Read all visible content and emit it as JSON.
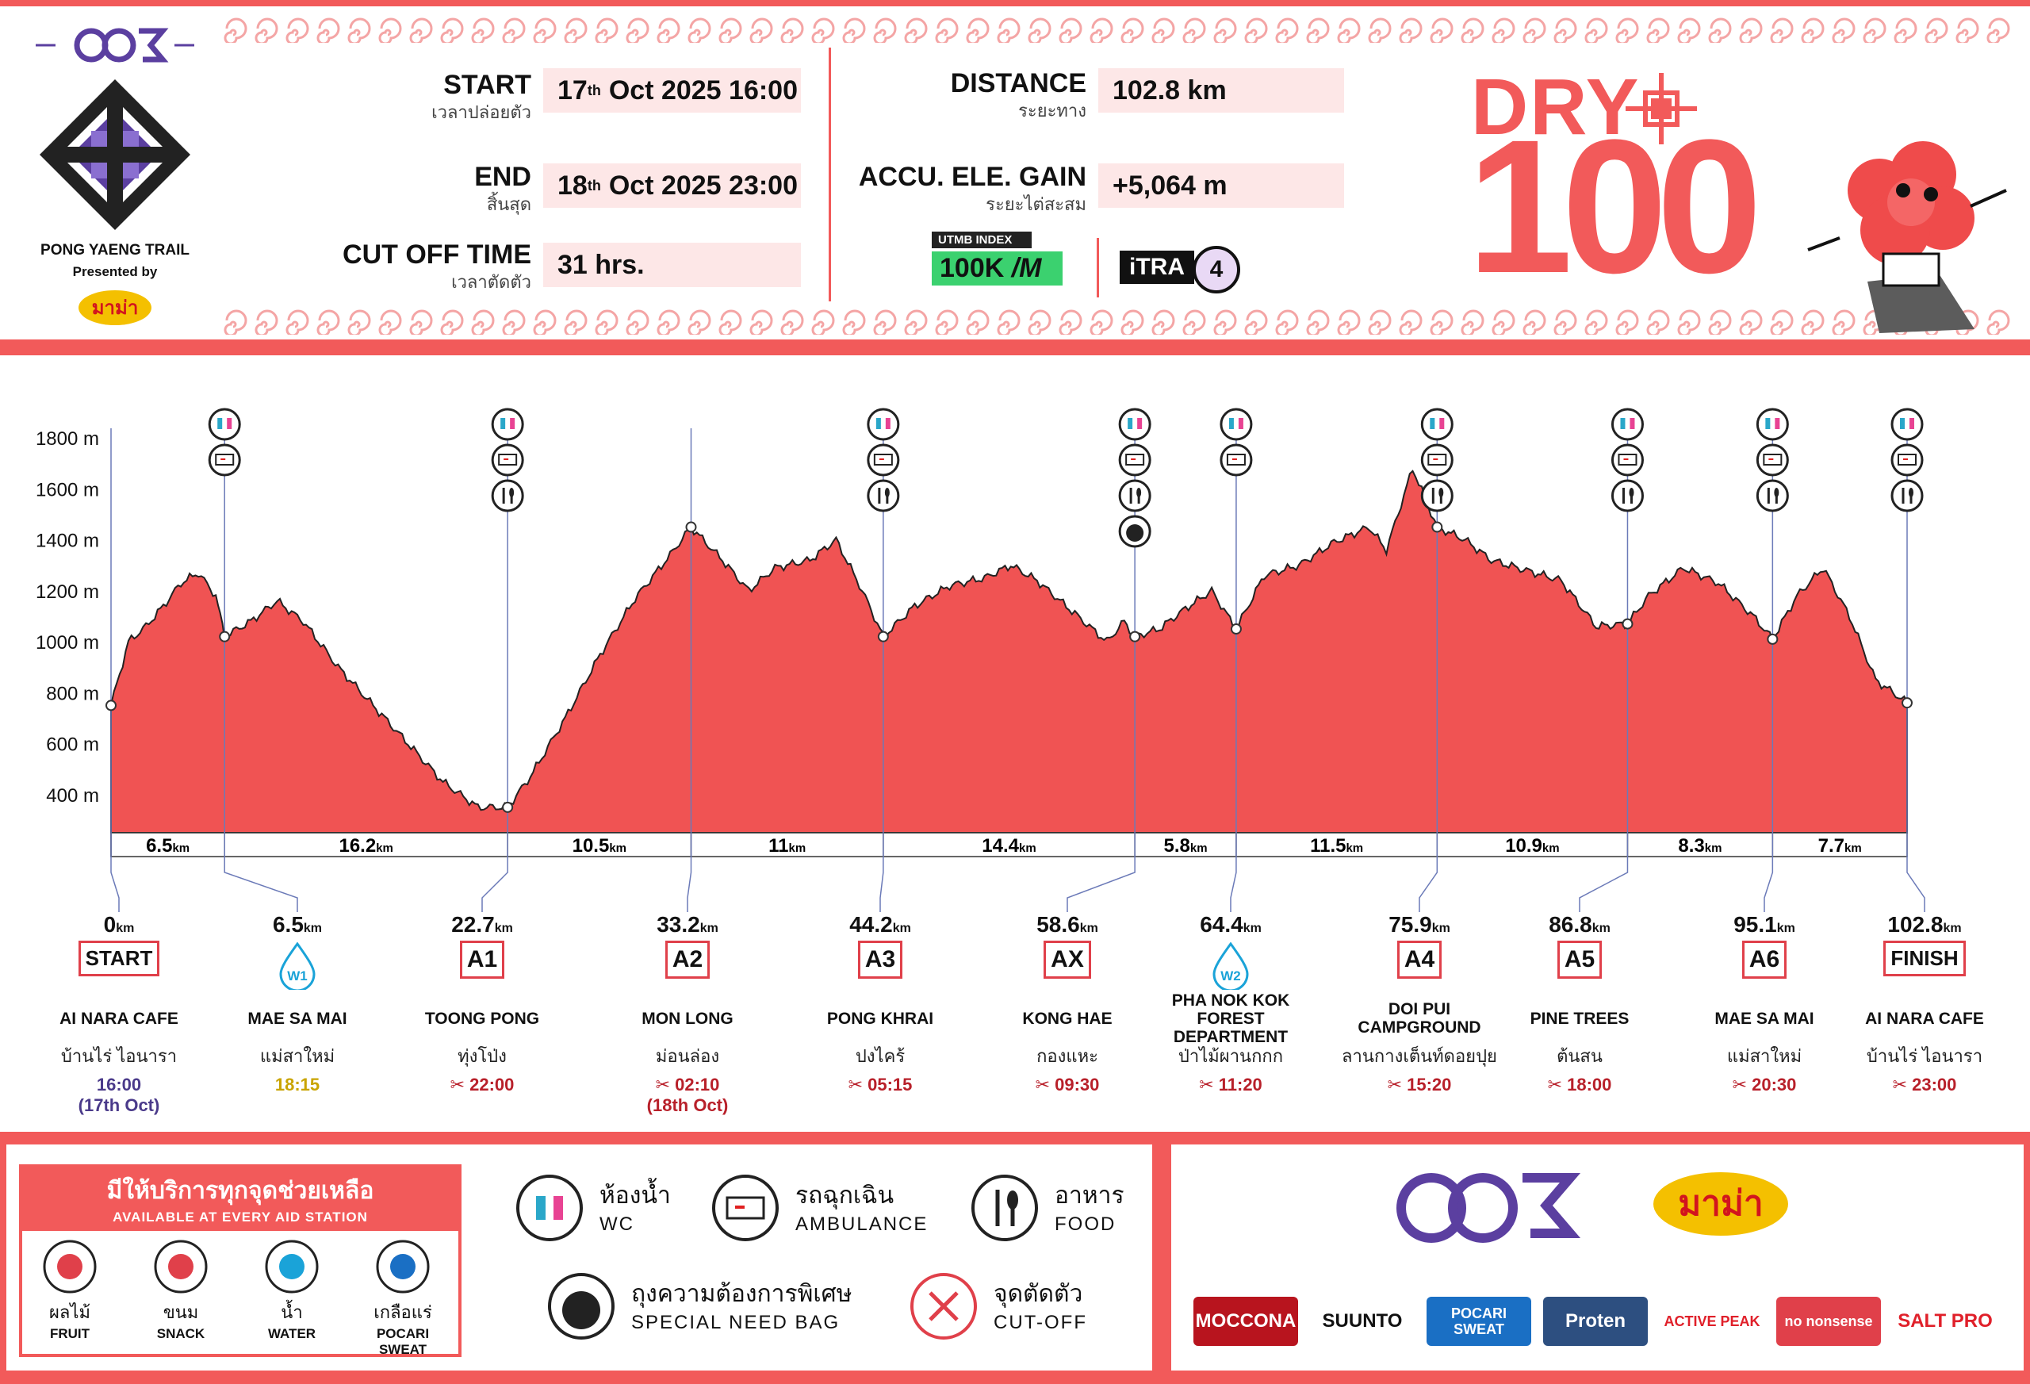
{
  "header": {
    "logo_text": "PONG YAENG TRAIL",
    "presented_by": "Presented by",
    "start_label": "START",
    "start_th": "เวลาปล่อยตัว",
    "start_day": "17",
    "start_sup": "th",
    "start_rest": "Oct  2025  16:00",
    "end_label": "END",
    "end_th": "สิ้นสุด",
    "end_day": "18",
    "end_sup": "th",
    "end_rest": "Oct  2025  23:00",
    "cutoff_label": "CUT OFF TIME",
    "cutoff_th": "เวลาตัดตัว",
    "cutoff_value": "31 hrs.",
    "distance_label": "DISTANCE",
    "distance_th": "ระยะทาง",
    "distance_value": "102.8 km",
    "gain_label": "ACCU. ELE. GAIN",
    "gain_th": "ระยะไต่สะสม",
    "gain_value": "+5,064 m",
    "utmb_top": "UTMB INDEX",
    "utmb_value": "100K",
    "itra_label": "iTRA",
    "itra_value": "4",
    "race_name_1": "DRY",
    "race_name_2": "100"
  },
  "chart_data": {
    "type": "area",
    "title": "",
    "xlabel": "",
    "ylabel": "",
    "ylim": [
      250,
      1900
    ],
    "xlim": [
      0,
      102.8
    ],
    "y_ticks": [
      "1800 m",
      "1600 m",
      "1400 m",
      "1200 m",
      "1000 m",
      "800 m",
      "600 m",
      "400 m"
    ],
    "y_tick_values": [
      1800,
      1600,
      1400,
      1200,
      1000,
      800,
      600,
      400
    ],
    "profile": [
      [
        0,
        750
      ],
      [
        1,
        1000
      ],
      [
        2,
        1060
      ],
      [
        3,
        1140
      ],
      [
        4,
        1230
      ],
      [
        5,
        1270
      ],
      [
        6,
        1180
      ],
      [
        6.5,
        1020
      ],
      [
        8,
        1080
      ],
      [
        9.5,
        1160
      ],
      [
        11,
        1080
      ],
      [
        13,
        900
      ],
      [
        15,
        750
      ],
      [
        17,
        600
      ],
      [
        19,
        450
      ],
      [
        21,
        350
      ],
      [
        22.7,
        350
      ],
      [
        24,
        470
      ],
      [
        26,
        700
      ],
      [
        28,
        950
      ],
      [
        30,
        1170
      ],
      [
        32,
        1340
      ],
      [
        33.2,
        1450
      ],
      [
        35,
        1320
      ],
      [
        36.5,
        1200
      ],
      [
        38,
        1290
      ],
      [
        40,
        1320
      ],
      [
        41.5,
        1400
      ],
      [
        43,
        1200
      ],
      [
        44.2,
        1020
      ],
      [
        46,
        1140
      ],
      [
        48,
        1220
      ],
      [
        50,
        1250
      ],
      [
        51.5,
        1300
      ],
      [
        53,
        1240
      ],
      [
        55,
        1120
      ],
      [
        57,
        1000
      ],
      [
        58,
        1080
      ],
      [
        58.6,
        1020
      ],
      [
        60,
        1050
      ],
      [
        61.5,
        1130
      ],
      [
        63,
        1200
      ],
      [
        64.4,
        1050
      ],
      [
        66,
        1260
      ],
      [
        68,
        1300
      ],
      [
        70,
        1390
      ],
      [
        72,
        1450
      ],
      [
        73,
        1360
      ],
      [
        74.5,
        1680
      ],
      [
        75.9,
        1450
      ],
      [
        77.5,
        1400
      ],
      [
        79,
        1320
      ],
      [
        81,
        1280
      ],
      [
        83,
        1240
      ],
      [
        85,
        1060
      ],
      [
        86.8,
        1070
      ],
      [
        88,
        1180
      ],
      [
        90,
        1290
      ],
      [
        92,
        1230
      ],
      [
        94,
        1100
      ],
      [
        95.1,
        1010
      ],
      [
        96.5,
        1180
      ],
      [
        98,
        1290
      ],
      [
        99.5,
        1100
      ],
      [
        101,
        850
      ],
      [
        102.8,
        760
      ]
    ],
    "segments": [
      {
        "value": "6.5",
        "unit": "km"
      },
      {
        "value": "16.2",
        "unit": "km"
      },
      {
        "value": "10.5",
        "unit": "km"
      },
      {
        "value": "11",
        "unit": "km"
      },
      {
        "value": "14.4",
        "unit": "km"
      },
      {
        "value": "5.8",
        "unit": "km"
      },
      {
        "value": "11.5",
        "unit": "km"
      },
      {
        "value": "10.9",
        "unit": "km"
      },
      {
        "value": "8.3",
        "unit": "km"
      },
      {
        "value": "7.7",
        "unit": "km"
      }
    ]
  },
  "stations": [
    {
      "km": "0",
      "unit": "km",
      "code": "START",
      "name": "AI NARA CAFE",
      "th": "บ้านไร่  ไอนารา",
      "time": "16:00",
      "time2": "(17th Oct)",
      "style": "pur",
      "icons": []
    },
    {
      "km": "6.5",
      "unit": "km",
      "code": "W1",
      "name": "MAE SA MAI",
      "th": "แม่สาใหม่",
      "time": "18:15",
      "time2": "",
      "style": "yel",
      "icons": [
        "wc",
        "amb"
      ]
    },
    {
      "km": "22.7",
      "unit": "km",
      "code": "A1",
      "name": "TOONG PONG",
      "th": "ทุ่งโป่ง",
      "time": "22:00",
      "time2": "",
      "style": "cut",
      "icons": [
        "wc",
        "amb",
        "food"
      ]
    },
    {
      "km": "33.2",
      "unit": "km",
      "code": "A2",
      "name": "MON LONG",
      "th": "ม่อนล่อง",
      "time": "02:10",
      "time2": "(18th Oct)",
      "style": "cut",
      "icons": []
    },
    {
      "km": "44.2",
      "unit": "km",
      "code": "A3",
      "name": "PONG KHRAI",
      "th": "ปงไคร้",
      "time": "05:15",
      "time2": "",
      "style": "cut",
      "icons": [
        "wc",
        "amb",
        "food"
      ]
    },
    {
      "km": "58.6",
      "unit": "km",
      "code": "AX",
      "name": "KONG HAE",
      "th": "กองแหะ",
      "time": "09:30",
      "time2": "",
      "style": "cut",
      "icons": [
        "wc",
        "amb",
        "food",
        "bag"
      ]
    },
    {
      "km": "64.4",
      "unit": "km",
      "code": "W2",
      "name": "PHA NOK KOK FOREST DEPARTMENT",
      "th": "ป่าไม้ผานกกก",
      "time": "11:20",
      "time2": "",
      "style": "cut",
      "icons": [
        "wc",
        "amb"
      ]
    },
    {
      "km": "75.9",
      "unit": "km",
      "code": "A4",
      "name": "DOI PUI CAMPGROUND",
      "th": "ลานกางเต็นท์ดอยปุย",
      "time": "15:20",
      "time2": "",
      "style": "cut",
      "icons": [
        "wc",
        "amb",
        "food"
      ]
    },
    {
      "km": "86.8",
      "unit": "km",
      "code": "A5",
      "name": "PINE TREES",
      "th": "ต้นสน",
      "time": "18:00",
      "time2": "",
      "style": "cut",
      "icons": [
        "wc",
        "amb",
        "food"
      ]
    },
    {
      "km": "95.1",
      "unit": "km",
      "code": "A6",
      "name": "MAE SA MAI",
      "th": "แม่สาใหม่",
      "time": "20:30",
      "time2": "",
      "style": "cut",
      "icons": [
        "wc",
        "amb",
        "food"
      ]
    },
    {
      "km": "102.8",
      "unit": "km",
      "code": "FINISH",
      "name": "AI NARA CAFE",
      "th": "บ้านไร่  ไอนารา",
      "time": "23:00",
      "time2": "",
      "style": "cut",
      "icons": [
        "wc",
        "amb",
        "food"
      ]
    }
  ],
  "aid_box": {
    "title": "มีให้บริการทุกจุดช่วยเหลือ",
    "subtitle": "AVAILABLE AT EVERY AID STATION",
    "items": [
      {
        "th": "ผลไม้",
        "en": "FRUIT",
        "en2": ""
      },
      {
        "th": "ขนม",
        "en": "SNACK",
        "en2": ""
      },
      {
        "th": "น้ำ",
        "en": "WATER",
        "en2": ""
      },
      {
        "th": "เกลือแร่",
        "en": "POCARI",
        "en2": "SWEAT"
      }
    ]
  },
  "legend": [
    {
      "th": "ห้องน้ำ",
      "en": "WC"
    },
    {
      "th": "รถฉุกเฉิน",
      "en": "AMBULANCE"
    },
    {
      "th": "อาหาร",
      "en": "FOOD"
    },
    {
      "th": "ถุงความต้องการพิเศษ",
      "en": "SPECIAL NEED BAG"
    },
    {
      "th": "จุดตัดตัว",
      "en": "CUT-OFF"
    }
  ],
  "sponsors": [
    "MOCCONA",
    "SUUNTO",
    "POCARI SWEAT",
    "Proten",
    "ACTIVE PEAK",
    "no nonsense",
    "SALT PRO"
  ],
  "colors": {
    "accent": "#f25a5a",
    "fill": "#f05353",
    "purple": "#5b3fa0",
    "bluegray": "#6b7ab8"
  }
}
